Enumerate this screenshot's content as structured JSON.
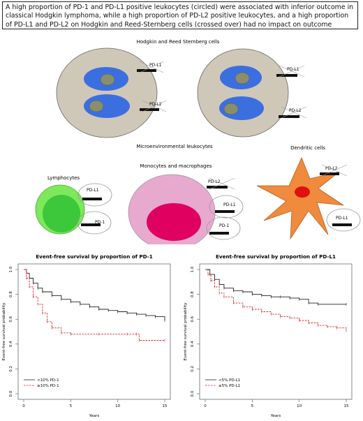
{
  "headline": "A high proportion of PD-1 and PD-L1 positive leukocytes (circled) were associated with inferior outcome in classical Hodgkin lymphoma, while a high proportion of PD-L2 positive leukocytes, and a high proportion of PD-L1 and PD-L2 on Hodgkin and Reed-Sternberg cells (crossed over) had no impact on outcome",
  "diagram": {
    "hrs_title": "Hodgkin and Reed Sternberg cells",
    "micro_title": "Microenvironmental leukocytes",
    "lymphocytes": "Lymphocytes",
    "monocytes": "Monocytes and macrophages",
    "dendritic": "Dendritic cells",
    "pdl1": "PD-L1",
    "pdl2": "PD-L2",
    "pd1": "PD-1",
    "colors": {
      "hrs_cell": "#cfc8b8",
      "nucleus": "#3b6fe0",
      "nucleolus": "#8a8f6a",
      "lymph_outer": "#7de85b",
      "lymph_inner": "#3cc83a",
      "mono_outer": "#e8a9cf",
      "mono_nucleus": "#e0005f",
      "dendritic": "#f08a3c",
      "dendritic_nucleus": "#e01010"
    }
  },
  "chart_data": [
    {
      "type": "line",
      "title": "Event-free survival by proportion of PD-1",
      "xlabel": "Years",
      "ylabel": "Event-free survival probability",
      "xlim": [
        0,
        15
      ],
      "ylim": [
        0,
        1
      ],
      "xticks": [
        "0",
        "5",
        "10",
        "15"
      ],
      "yticks": [
        "0.0",
        "0.2",
        "0.4",
        "0.6",
        "0.8",
        "1.0"
      ],
      "legend_position": "bottom-left",
      "series": [
        {
          "name": "<10% PD-1",
          "color": "#222222",
          "dashed": false,
          "points": [
            [
              0,
              1.0
            ],
            [
              0.3,
              0.97
            ],
            [
              0.6,
              0.93
            ],
            [
              1,
              0.89
            ],
            [
              1.5,
              0.85
            ],
            [
              2,
              0.82
            ],
            [
              3,
              0.79
            ],
            [
              4,
              0.76
            ],
            [
              5,
              0.74
            ],
            [
              6,
              0.72
            ],
            [
              7,
              0.7
            ],
            [
              8,
              0.68
            ],
            [
              9,
              0.67
            ],
            [
              10,
              0.66
            ],
            [
              11,
              0.65
            ],
            [
              12,
              0.64
            ],
            [
              13,
              0.63
            ],
            [
              14,
              0.62
            ],
            [
              15,
              0.59
            ]
          ]
        },
        {
          "name": "≥10% PD-1",
          "color": "#dd2222",
          "dashed": true,
          "points": [
            [
              0,
              1.0
            ],
            [
              0.3,
              0.93
            ],
            [
              0.6,
              0.86
            ],
            [
              1,
              0.78
            ],
            [
              1.5,
              0.72
            ],
            [
              2,
              0.65
            ],
            [
              2.5,
              0.58
            ],
            [
              3,
              0.53
            ],
            [
              4,
              0.49
            ],
            [
              5,
              0.48
            ],
            [
              8,
              0.48
            ],
            [
              11,
              0.48
            ],
            [
              12,
              0.48
            ],
            [
              12.3,
              0.43
            ],
            [
              15,
              0.43
            ]
          ]
        }
      ]
    },
    {
      "type": "line",
      "title": "Event-free survival by proportion of PD-L1",
      "xlabel": "Years",
      "ylabel": "Event-free survival probability",
      "xlim": [
        0,
        15
      ],
      "ylim": [
        0,
        1
      ],
      "xticks": [
        "0",
        "5",
        "10",
        "15"
      ],
      "yticks": [
        "0.0",
        "0.2",
        "0.4",
        "0.6",
        "0.8",
        "1.0"
      ],
      "legend_position": "bottom-left",
      "series": [
        {
          "name": "<5% PD-L1",
          "color": "#222222",
          "dashed": false,
          "points": [
            [
              0,
              1.0
            ],
            [
              0.5,
              0.96
            ],
            [
              1,
              0.92
            ],
            [
              1.5,
              0.88
            ],
            [
              2,
              0.85
            ],
            [
              3,
              0.83
            ],
            [
              4,
              0.82
            ],
            [
              5,
              0.8
            ],
            [
              6,
              0.79
            ],
            [
              7,
              0.78
            ],
            [
              8,
              0.78
            ],
            [
              9,
              0.77
            ],
            [
              10,
              0.76
            ],
            [
              11,
              0.73
            ],
            [
              12,
              0.72
            ],
            [
              15,
              0.72
            ]
          ]
        },
        {
          "name": "≥5% PD-L1",
          "color": "#dd2222",
          "dashed": true,
          "points": [
            [
              0,
              1.0
            ],
            [
              0.3,
              0.96
            ],
            [
              0.6,
              0.91
            ],
            [
              1,
              0.86
            ],
            [
              1.5,
              0.81
            ],
            [
              2,
              0.78
            ],
            [
              3,
              0.73
            ],
            [
              4,
              0.7
            ],
            [
              5,
              0.68
            ],
            [
              6,
              0.66
            ],
            [
              7,
              0.64
            ],
            [
              8,
              0.62
            ],
            [
              9,
              0.61
            ],
            [
              10,
              0.59
            ],
            [
              11,
              0.57
            ],
            [
              12,
              0.55
            ],
            [
              13,
              0.54
            ],
            [
              14,
              0.53
            ],
            [
              15,
              0.51
            ]
          ]
        }
      ]
    }
  ]
}
